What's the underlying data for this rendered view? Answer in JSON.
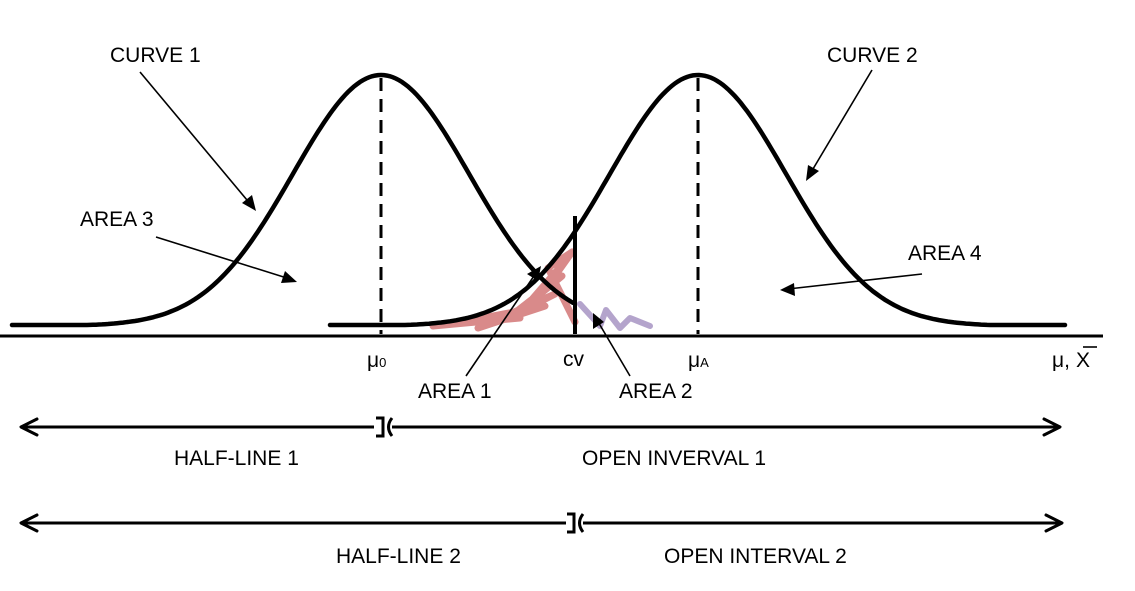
{
  "labels": {
    "curve1": "CURVE 1",
    "curve2": "CURVE 2",
    "area1": "AREA 1",
    "area2": "AREA 2",
    "area3": "AREA 3",
    "area4": "AREA 4",
    "mu0": "μ",
    "mu0_sub": "0",
    "muA": "μ",
    "muA_sub": "A",
    "cv": "cv",
    "axis_label_mu": "μ,",
    "axis_label_xbar": "X",
    "half_line_1": "HALF-LINE 1",
    "open_interval_1": "OPEN INVERVAL 1",
    "half_line_2": "HALF-LINE 2",
    "open_interval_2": "OPEN INTERVAL 2"
  },
  "colors": {
    "area1_scribble": "#d98a8a",
    "area2_scribble": "#b4a4cc",
    "ink": "#000000"
  }
}
